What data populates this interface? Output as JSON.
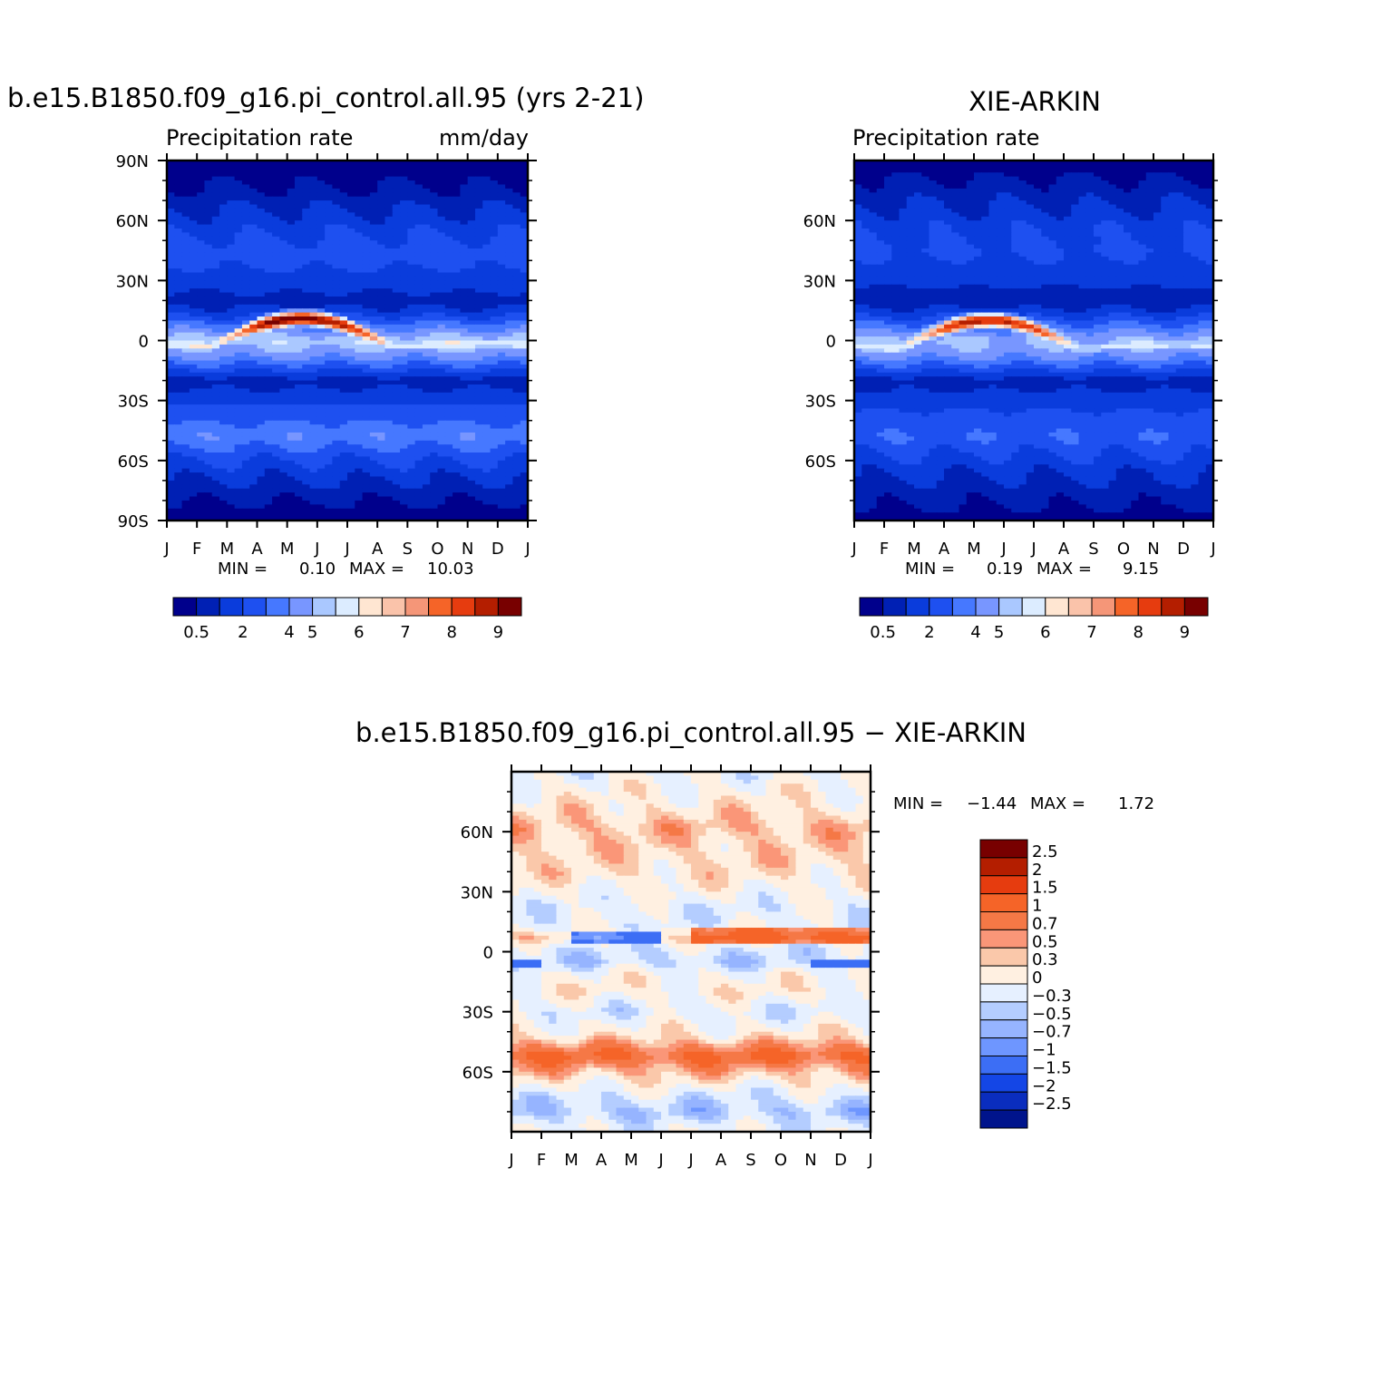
{
  "chart_data": [
    {
      "type": "heatmap",
      "title": "b.e15.B1850.f09_g16.pi_control.all.95 (yrs 2-21)",
      "subtitle_left": "Precipitation  rate",
      "subtitle_right": "mm/day",
      "x_ticks": [
        "J",
        "F",
        "M",
        "A",
        "M",
        "J",
        "J",
        "A",
        "S",
        "O",
        "N",
        "D",
        "J"
      ],
      "y_ticks": [
        "90N",
        "60N",
        "30N",
        "0",
        "30S",
        "60S",
        "90S"
      ],
      "stats": {
        "min_label": "MIN =",
        "min": "0.10",
        "max_label": "MAX =",
        "max": "10.03"
      },
      "colorbar_labels": [
        "0.5",
        "2",
        "4",
        "5",
        "6",
        "7",
        "8",
        "9"
      ],
      "colorbar_colors": [
        "#00008c",
        "#0020b4",
        "#0a3cdc",
        "#1e50f0",
        "#4678ff",
        "#7896ff",
        "#aac8ff",
        "#dcecff",
        "#ffe6d2",
        "#fac3aa",
        "#f59678",
        "#f56428",
        "#e63c0f",
        "#b41e00",
        "#780000"
      ],
      "field": {
        "z_min": 0.1,
        "z_max": 10.03,
        "itcz": {
          "lat_start": -3,
          "lat_end": 2,
          "lat_peak": 11,
          "peak": 10.03,
          "base": 5.2
        },
        "background": [
          {
            "lat": 90,
            "v": 0.3
          },
          {
            "lat": 78,
            "v": 0.6
          },
          {
            "lat": 60,
            "v": 1.6
          },
          {
            "lat": 45,
            "v": 2.3
          },
          {
            "lat": 30,
            "v": 1.8
          },
          {
            "lat": 20,
            "v": 1.0
          },
          {
            "lat": 14,
            "v": 1.6
          },
          {
            "lat": 0,
            "v": 4.5
          },
          {
            "lat": -8,
            "v": 3.5
          },
          {
            "lat": -20,
            "v": 1.0
          },
          {
            "lat": -35,
            "v": 2.2
          },
          {
            "lat": -48,
            "v": 3.2
          },
          {
            "lat": -60,
            "v": 2.0
          },
          {
            "lat": -75,
            "v": 1.0
          },
          {
            "lat": -90,
            "v": 0.2
          }
        ]
      }
    },
    {
      "type": "heatmap",
      "title": "XIE-ARKIN",
      "subtitle_left": "Precipitation  rate",
      "subtitle_right": "",
      "x_ticks": [
        "J",
        "F",
        "M",
        "A",
        "M",
        "J",
        "J",
        "A",
        "S",
        "O",
        "N",
        "D",
        "J"
      ],
      "y_ticks": [
        "60N",
        "30N",
        "0",
        "30S",
        "60S"
      ],
      "stats": {
        "min_label": "MIN =",
        "min": "0.19",
        "max_label": "MAX =",
        "max": "9.15"
      },
      "colorbar_labels": [
        "0.5",
        "2",
        "4",
        "5",
        "6",
        "7",
        "8",
        "9"
      ],
      "colorbar_colors": [
        "#00008c",
        "#0020b4",
        "#0a3cdc",
        "#1e50f0",
        "#4678ff",
        "#7896ff",
        "#aac8ff",
        "#dcecff",
        "#ffe6d2",
        "#fac3aa",
        "#f59678",
        "#f56428",
        "#e63c0f",
        "#b41e00",
        "#780000"
      ],
      "field": {
        "z_min": 0.19,
        "z_max": 9.15,
        "itcz": {
          "lat_start": -4,
          "lat_end": 2,
          "lat_peak": 10,
          "peak": 9.15,
          "base": 5.0
        },
        "background": [
          {
            "lat": 90,
            "v": 0.3
          },
          {
            "lat": 78,
            "v": 0.8
          },
          {
            "lat": 60,
            "v": 1.7
          },
          {
            "lat": 45,
            "v": 2.1
          },
          {
            "lat": 30,
            "v": 1.6
          },
          {
            "lat": 20,
            "v": 0.8
          },
          {
            "lat": 14,
            "v": 1.6
          },
          {
            "lat": 0,
            "v": 4.2
          },
          {
            "lat": -8,
            "v": 3.5
          },
          {
            "lat": -20,
            "v": 1.0
          },
          {
            "lat": -35,
            "v": 2.0
          },
          {
            "lat": -48,
            "v": 2.6
          },
          {
            "lat": -60,
            "v": 1.8
          },
          {
            "lat": -75,
            "v": 1.0
          },
          {
            "lat": -90,
            "v": 0.4
          }
        ]
      }
    },
    {
      "type": "heatmap",
      "title": "b.e15.B1850.f09_g16.pi_control.all.95  −  XIE-ARKIN",
      "x_ticks": [
        "J",
        "F",
        "M",
        "A",
        "M",
        "J",
        "J",
        "A",
        "S",
        "O",
        "N",
        "D",
        "J"
      ],
      "y_ticks": [
        "60N",
        "30N",
        "0",
        "30S",
        "60S"
      ],
      "stats": {
        "min_label": "MIN =",
        "min": "−1.44",
        "max_label": "MAX =",
        "max": "1.72"
      },
      "colorbar_labels": [
        "2.5",
        "2",
        "1.5",
        "1",
        "0.7",
        "0.5",
        "0.3",
        "0",
        "−0.3",
        "−0.5",
        "−0.7",
        "−1",
        "−1.5",
        "−2",
        "−2.5"
      ],
      "colorbar_colors": [
        "#780000",
        "#b41e00",
        "#e63c0f",
        "#f56428",
        "#f57846",
        "#fa9678",
        "#fac8aa",
        "#fff0e1",
        "#e6f0ff",
        "#b4cdff",
        "#96b4ff",
        "#6e96ff",
        "#3c6ef5",
        "#1446e6",
        "#0a2dbe",
        "#00148c"
      ],
      "field": {
        "z_min": -1.44,
        "z_max": 1.72,
        "bands": [
          {
            "lat": 88,
            "v": -0.05
          },
          {
            "lat": 75,
            "v": 0.15
          },
          {
            "lat": 62,
            "v": 0.45
          },
          {
            "lat": 50,
            "v": 0.3
          },
          {
            "lat": 40,
            "v": 0.25
          },
          {
            "lat": 30,
            "v": 0.05
          },
          {
            "lat": 22,
            "v": -0.15
          },
          {
            "lat": 12,
            "v": -0.1
          },
          {
            "lat": 7,
            "v": 0.3
          },
          {
            "lat": 2,
            "v": -0.2
          },
          {
            "lat": -5,
            "v": -0.35
          },
          {
            "lat": -12,
            "v": 0.05
          },
          {
            "lat": -20,
            "v": 0.15
          },
          {
            "lat": -30,
            "v": -0.2
          },
          {
            "lat": -42,
            "v": 0.2
          },
          {
            "lat": -52,
            "v": 1.05
          },
          {
            "lat": -62,
            "v": 0.35
          },
          {
            "lat": -72,
            "v": -0.2
          },
          {
            "lat": -80,
            "v": -0.45
          },
          {
            "lat": -88,
            "v": -0.1
          }
        ]
      }
    }
  ]
}
